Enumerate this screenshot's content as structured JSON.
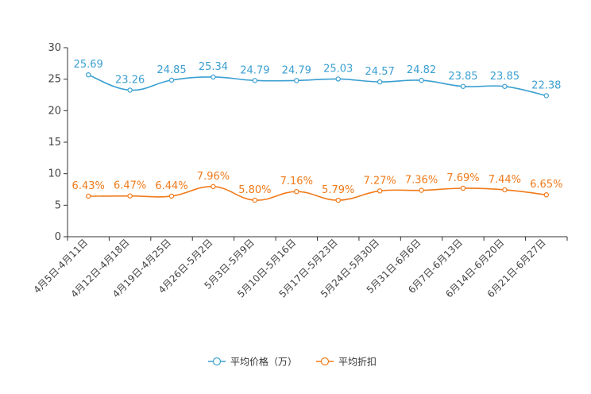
{
  "chart_data": {
    "type": "line",
    "title": "",
    "xlabel": "",
    "ylabel": "",
    "ylim": [
      0,
      30
    ],
    "yticks": [
      0,
      5,
      10,
      15,
      20,
      25,
      30
    ],
    "categories": [
      "4月5日-4月11日",
      "4月12日-4月18日",
      "4月19日-4月25日",
      "4月26日-5月2日",
      "5月3日-5月9日",
      "5月10日-5月16日",
      "5月17日-5月23日",
      "5月24日-5月30日",
      "5月31日-6月6日",
      "6月7日-6月13日",
      "6月14日-6月20日",
      "6月21日-6月27日"
    ],
    "series": [
      {
        "name": "平均价格（万）",
        "color": "#3a9fd1",
        "values": [
          25.69,
          23.26,
          24.85,
          25.34,
          24.79,
          24.79,
          25.03,
          24.57,
          24.82,
          23.85,
          23.85,
          22.38
        ],
        "labels": [
          "25.69",
          "23.26",
          "24.85",
          "25.34",
          "24.79",
          "24.79",
          "25.03",
          "24.57",
          "24.82",
          "23.85",
          "23.85",
          "22.38"
        ]
      },
      {
        "name": "平均折扣",
        "color": "#f07a1a",
        "values": [
          6.43,
          6.47,
          6.44,
          7.96,
          5.8,
          7.16,
          5.79,
          7.27,
          7.36,
          7.69,
          7.44,
          6.65
        ],
        "labels": [
          "6.43%",
          "6.47%",
          "6.44%",
          "7.96%",
          "5.80%",
          "7.16%",
          "5.79%",
          "7.27%",
          "7.36%",
          "7.69%",
          "7.44%",
          "6.65%"
        ]
      }
    ],
    "legend_position": "bottom-center"
  }
}
